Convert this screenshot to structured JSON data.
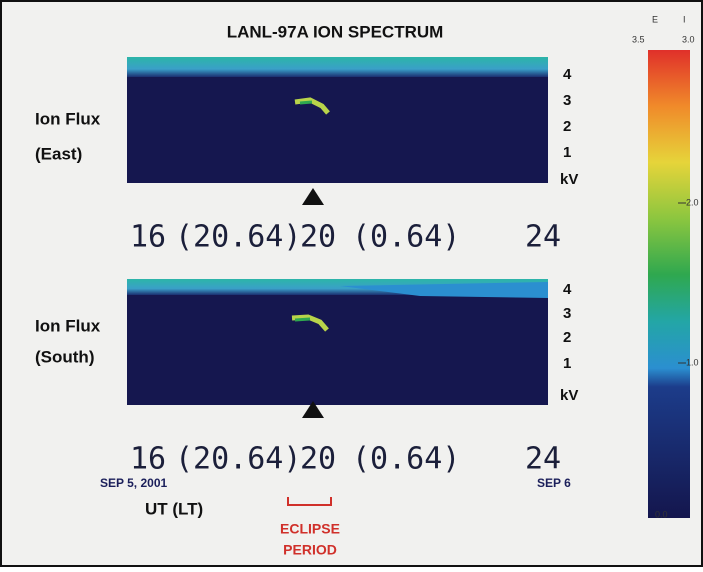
{
  "title": "LANL-97A  ION SPECTRUM",
  "panels": [
    {
      "label": [
        "Ion Flux",
        "(East)"
      ],
      "yticks": [
        "4",
        "3",
        "2",
        "1"
      ],
      "yunit": "kV",
      "xticks": [
        "16",
        "(20.64)",
        "20",
        "(0.64)",
        "24"
      ]
    },
    {
      "label": [
        "Ion Flux",
        "(South)"
      ],
      "yticks": [
        "4",
        "3",
        "2",
        "1"
      ],
      "yunit": "kV",
      "xticks": [
        "16",
        "(20.64)",
        "20",
        "(0.64)",
        "24"
      ]
    }
  ],
  "date_start": "SEP 5, 2001",
  "date_end": "SEP 6",
  "x_axis_label": "UT (LT)",
  "eclipse_label": [
    "ECLIPSE",
    "PERIOD"
  ],
  "colorbar": {
    "header": [
      "E",
      "I"
    ],
    "top_labels": [
      "3.5",
      "3.0"
    ],
    "labels": [
      "2.0",
      "1.0",
      "0.0"
    ]
  }
}
